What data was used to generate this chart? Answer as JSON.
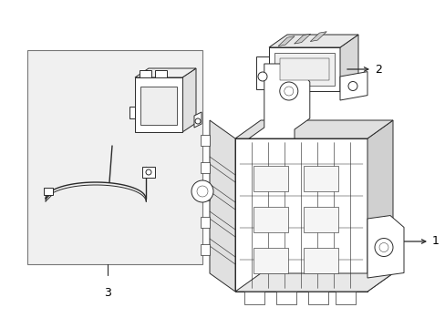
{
  "background_color": "#ffffff",
  "line_color": "#2a2a2a",
  "label_color": "#000000",
  "label_1": "1",
  "label_2": "2",
  "label_3": "3",
  "fig_width": 4.89,
  "fig_height": 3.6,
  "dpi": 100
}
